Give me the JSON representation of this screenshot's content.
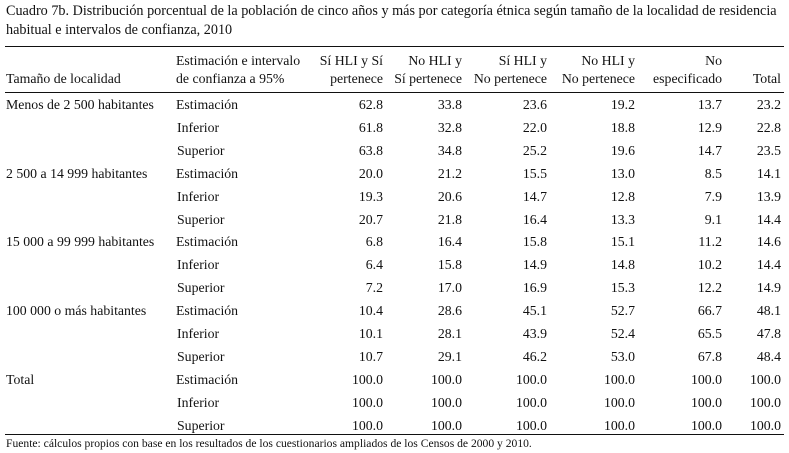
{
  "title": "Cuadro 7b. Distribución porcentual de la población de cinco años y más por categoría étnica según tamaño de la localidad de residencia habitual e intervalos de confianza, 2010",
  "headers": {
    "locality": "Tamaño de localidad",
    "estimate_line1": "Estimación e intervalo",
    "estimate_line2": "de confianza a 95%",
    "cols": [
      {
        "line1": "Sí HLI y Sí",
        "line2": "pertenece"
      },
      {
        "line1": "No HLI y",
        "line2": "Sí pertenece"
      },
      {
        "line1": "Sí HLI y",
        "line2": "No pertenece"
      },
      {
        "line1": "No HLI y",
        "line2": "No pertenece"
      },
      {
        "line1": "No",
        "line2": "especificado"
      },
      {
        "line1": "",
        "line2": "Total"
      }
    ]
  },
  "groups": [
    {
      "label": "Menos de 2 500 habitantes",
      "rows": [
        {
          "kind": "Estimación",
          "values": [
            "62.8",
            "33.8",
            "23.6",
            "19.2",
            "13.7",
            "23.2"
          ]
        },
        {
          "kind": "Inferior",
          "values": [
            "61.8",
            "32.8",
            "22.0",
            "18.8",
            "12.9",
            "22.8"
          ]
        },
        {
          "kind": "Superior",
          "values": [
            "63.8",
            "34.8",
            "25.2",
            "19.6",
            "14.7",
            "23.5"
          ]
        }
      ]
    },
    {
      "label": "2 500 a 14 999 habitantes",
      "rows": [
        {
          "kind": "Estimación",
          "values": [
            "20.0",
            "21.2",
            "15.5",
            "13.0",
            "8.5",
            "14.1"
          ]
        },
        {
          "kind": "Inferior",
          "values": [
            "19.3",
            "20.6",
            "14.7",
            "12.8",
            "7.9",
            "13.9"
          ]
        },
        {
          "kind": "Superior",
          "values": [
            "20.7",
            "21.8",
            "16.4",
            "13.3",
            "9.1",
            "14.4"
          ]
        }
      ]
    },
    {
      "label": "15 000 a 99 999 habitantes",
      "rows": [
        {
          "kind": "Estimación",
          "values": [
            "6.8",
            "16.4",
            "15.8",
            "15.1",
            "11.2",
            "14.6"
          ]
        },
        {
          "kind": "Inferior",
          "values": [
            "6.4",
            "15.8",
            "14.9",
            "14.8",
            "10.2",
            "14.4"
          ]
        },
        {
          "kind": "Superior",
          "values": [
            "7.2",
            "17.0",
            "16.9",
            "15.3",
            "12.2",
            "14.9"
          ]
        }
      ]
    },
    {
      "label": "100 000 o más habitantes",
      "rows": [
        {
          "kind": "Estimación",
          "values": [
            "10.4",
            "28.6",
            "45.1",
            "52.7",
            "66.7",
            "48.1"
          ]
        },
        {
          "kind": "Inferior",
          "values": [
            "10.1",
            "28.1",
            "43.9",
            "52.4",
            "65.5",
            "47.8"
          ]
        },
        {
          "kind": "Superior",
          "values": [
            "10.7",
            "29.1",
            "46.2",
            "53.0",
            "67.8",
            "48.4"
          ]
        }
      ]
    },
    {
      "label": "Total",
      "rows": [
        {
          "kind": "Estimación",
          "values": [
            "100.0",
            "100.0",
            "100.0",
            "100.0",
            "100.0",
            "100.0"
          ]
        },
        {
          "kind": "Inferior",
          "values": [
            "100.0",
            "100.0",
            "100.0",
            "100.0",
            "100.0",
            "100.0"
          ]
        },
        {
          "kind": "Superior",
          "values": [
            "100.0",
            "100.0",
            "100.0",
            "100.0",
            "100.0",
            "100.0"
          ]
        }
      ]
    }
  ],
  "source": "Fuente: cálculos propios con base en los resultados de los cuestionarios ampliados de los Censos de 2000 y 2010."
}
